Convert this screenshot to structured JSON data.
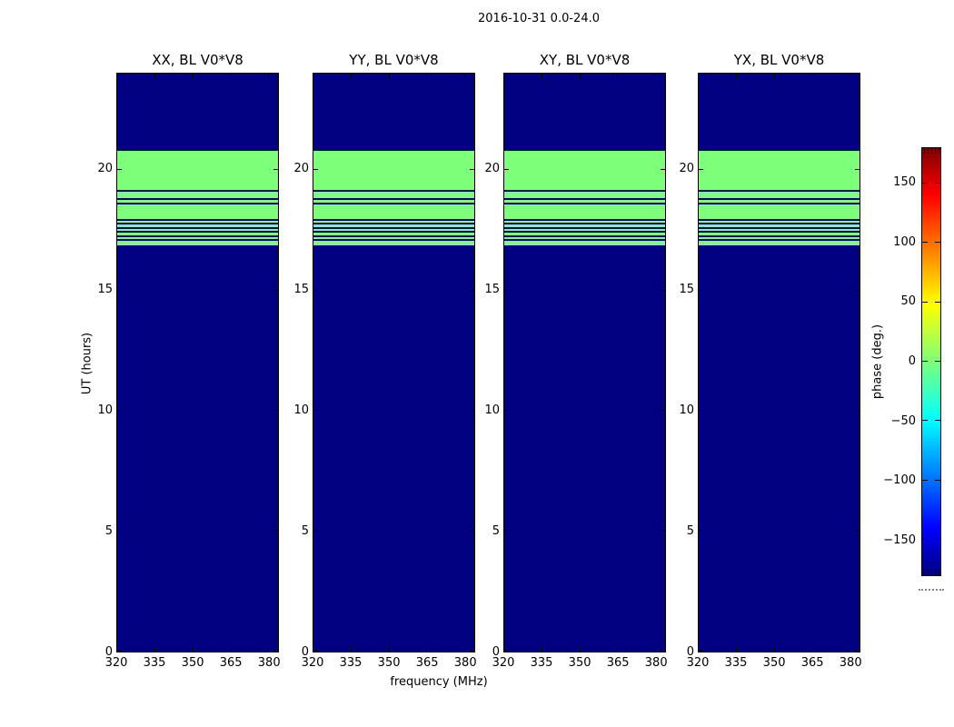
{
  "figure": {
    "title": "2016-10-31 0.0-24.0",
    "xlabel": "frequency (MHz)",
    "ylabel": "UT (hours)",
    "colorbar_label": "phase (deg.)"
  },
  "chart_data": {
    "type": "heatmap",
    "title": "2016-10-31 0.0-24.0",
    "panels": [
      {
        "title": "XX, BL V0*V8"
      },
      {
        "title": "YY, BL V0*V8"
      },
      {
        "title": "XY, BL V0*V8"
      },
      {
        "title": "YX, BL V0*V8"
      }
    ],
    "xlabel": "frequency (MHz)",
    "ylabel": "UT (hours)",
    "x_axis": {
      "label": "frequency (MHz)",
      "range_mhz": [
        320,
        383.5
      ],
      "ticks": [
        320,
        335,
        350,
        365,
        380
      ]
    },
    "y_axis": {
      "label": "UT (hours)",
      "range_hours": [
        0,
        24
      ],
      "ticks": [
        0,
        5,
        10,
        15,
        20
      ]
    },
    "colorbar": {
      "label": "phase (deg.)",
      "range_deg": [
        -180,
        180
      ],
      "ticks": [
        150,
        100,
        50,
        0,
        -50,
        -100,
        -150
      ],
      "colormap": "jet",
      "colormap_stops": [
        [
          0.0,
          "#000080"
        ],
        [
          0.11,
          "#0000ff"
        ],
        [
          0.365,
          "#00ffff"
        ],
        [
          0.5,
          "#7dff7a"
        ],
        [
          0.635,
          "#ffff00"
        ],
        [
          0.89,
          "#ff0000"
        ],
        [
          1.0,
          "#800000"
        ]
      ]
    },
    "ut_segments": [
      {
        "start": 0.0,
        "end": 16.86,
        "phase_deg": -180
      },
      {
        "start": 16.86,
        "end": 17.05,
        "phase_deg": 0
      },
      {
        "start": 17.05,
        "end": 17.12,
        "phase_deg": -180
      },
      {
        "start": 17.12,
        "end": 17.22,
        "phase_deg": 0
      },
      {
        "start": 17.22,
        "end": 17.29,
        "phase_deg": -180
      },
      {
        "start": 17.29,
        "end": 17.39,
        "phase_deg": 0
      },
      {
        "start": 17.39,
        "end": 17.46,
        "phase_deg": -180
      },
      {
        "start": 17.46,
        "end": 17.56,
        "phase_deg": 0
      },
      {
        "start": 17.56,
        "end": 17.63,
        "phase_deg": -180
      },
      {
        "start": 17.63,
        "end": 17.73,
        "phase_deg": 0
      },
      {
        "start": 17.73,
        "end": 17.8,
        "phase_deg": -180
      },
      {
        "start": 17.8,
        "end": 17.9,
        "phase_deg": 0
      },
      {
        "start": 17.9,
        "end": 17.97,
        "phase_deg": -180
      },
      {
        "start": 17.97,
        "end": 18.56,
        "phase_deg": 0
      },
      {
        "start": 18.56,
        "end": 18.64,
        "phase_deg": -180
      },
      {
        "start": 18.64,
        "end": 18.76,
        "phase_deg": 0
      },
      {
        "start": 18.76,
        "end": 18.84,
        "phase_deg": -180
      },
      {
        "start": 18.84,
        "end": 19.1,
        "phase_deg": 0
      },
      {
        "start": 19.1,
        "end": 19.18,
        "phase_deg": -180
      },
      {
        "start": 19.18,
        "end": 20.78,
        "phase_deg": 0
      },
      {
        "start": 20.78,
        "end": 24.0,
        "phase_deg": -180
      }
    ]
  }
}
